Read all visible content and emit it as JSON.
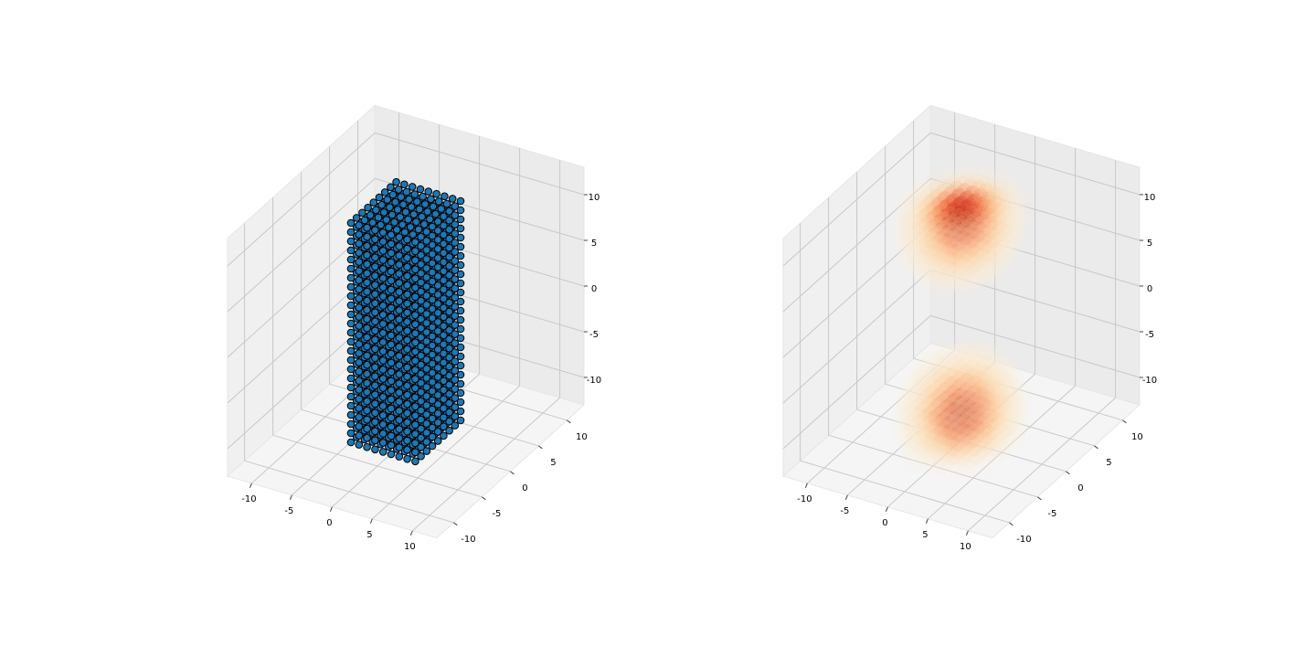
{
  "chart_data": [
    {
      "type": "scatter3d",
      "x": [
        -4,
        -3,
        -2,
        -1,
        0,
        1,
        2,
        3,
        4
      ],
      "y": [
        -4,
        -3,
        -2,
        -1,
        0,
        1,
        2,
        3,
        4
      ],
      "z": [
        -12,
        -11,
        -10,
        -9,
        -8,
        -7,
        -6,
        -5,
        -4,
        -3,
        -2,
        -1,
        0,
        1,
        2,
        3,
        4,
        5,
        6,
        7,
        8,
        9,
        10,
        11,
        12
      ],
      "color": "#1f77b4",
      "edgecolor": "#000000",
      "xlim": [
        -13,
        13
      ],
      "ylim": [
        -13,
        13
      ],
      "zlim": [
        -13,
        13
      ],
      "xticks": [
        -10,
        -5,
        0,
        5,
        10
      ],
      "yticks": [
        -10,
        -5,
        0,
        5,
        10
      ],
      "zticks": [
        -10,
        -5,
        0,
        5,
        10
      ],
      "grid": true
    },
    {
      "type": "density3d",
      "x": [
        -6,
        -5,
        -4,
        -3,
        -2,
        -1,
        0,
        1,
        2,
        3,
        4,
        5,
        6
      ],
      "y": [
        -6,
        -5,
        -4,
        -3,
        -2,
        -1,
        0,
        1,
        2,
        3,
        4,
        5,
        6
      ],
      "z": [
        -13,
        -12,
        -11,
        -10,
        -9,
        -8,
        -7,
        -6,
        -5,
        -4,
        -3,
        -2,
        -1,
        0,
        1,
        2,
        3,
        4,
        5,
        6,
        7,
        8,
        9,
        10,
        11,
        12,
        13
      ],
      "centers": [
        [
          0,
          0,
          11
        ],
        [
          0,
          0,
          -10
        ]
      ],
      "colormap": [
        "#fff7ec",
        "#fdd49e",
        "#fc8d59",
        "#d7301f",
        "#7f0000"
      ],
      "xlim": [
        -13,
        13
      ],
      "ylim": [
        -13,
        13
      ],
      "zlim": [
        -13,
        13
      ],
      "xticks": [
        -10,
        -5,
        0,
        5,
        10
      ],
      "yticks": [
        -10,
        -5,
        0,
        5,
        10
      ],
      "zticks": [
        -10,
        -5,
        0,
        5,
        10
      ],
      "grid": true
    }
  ]
}
